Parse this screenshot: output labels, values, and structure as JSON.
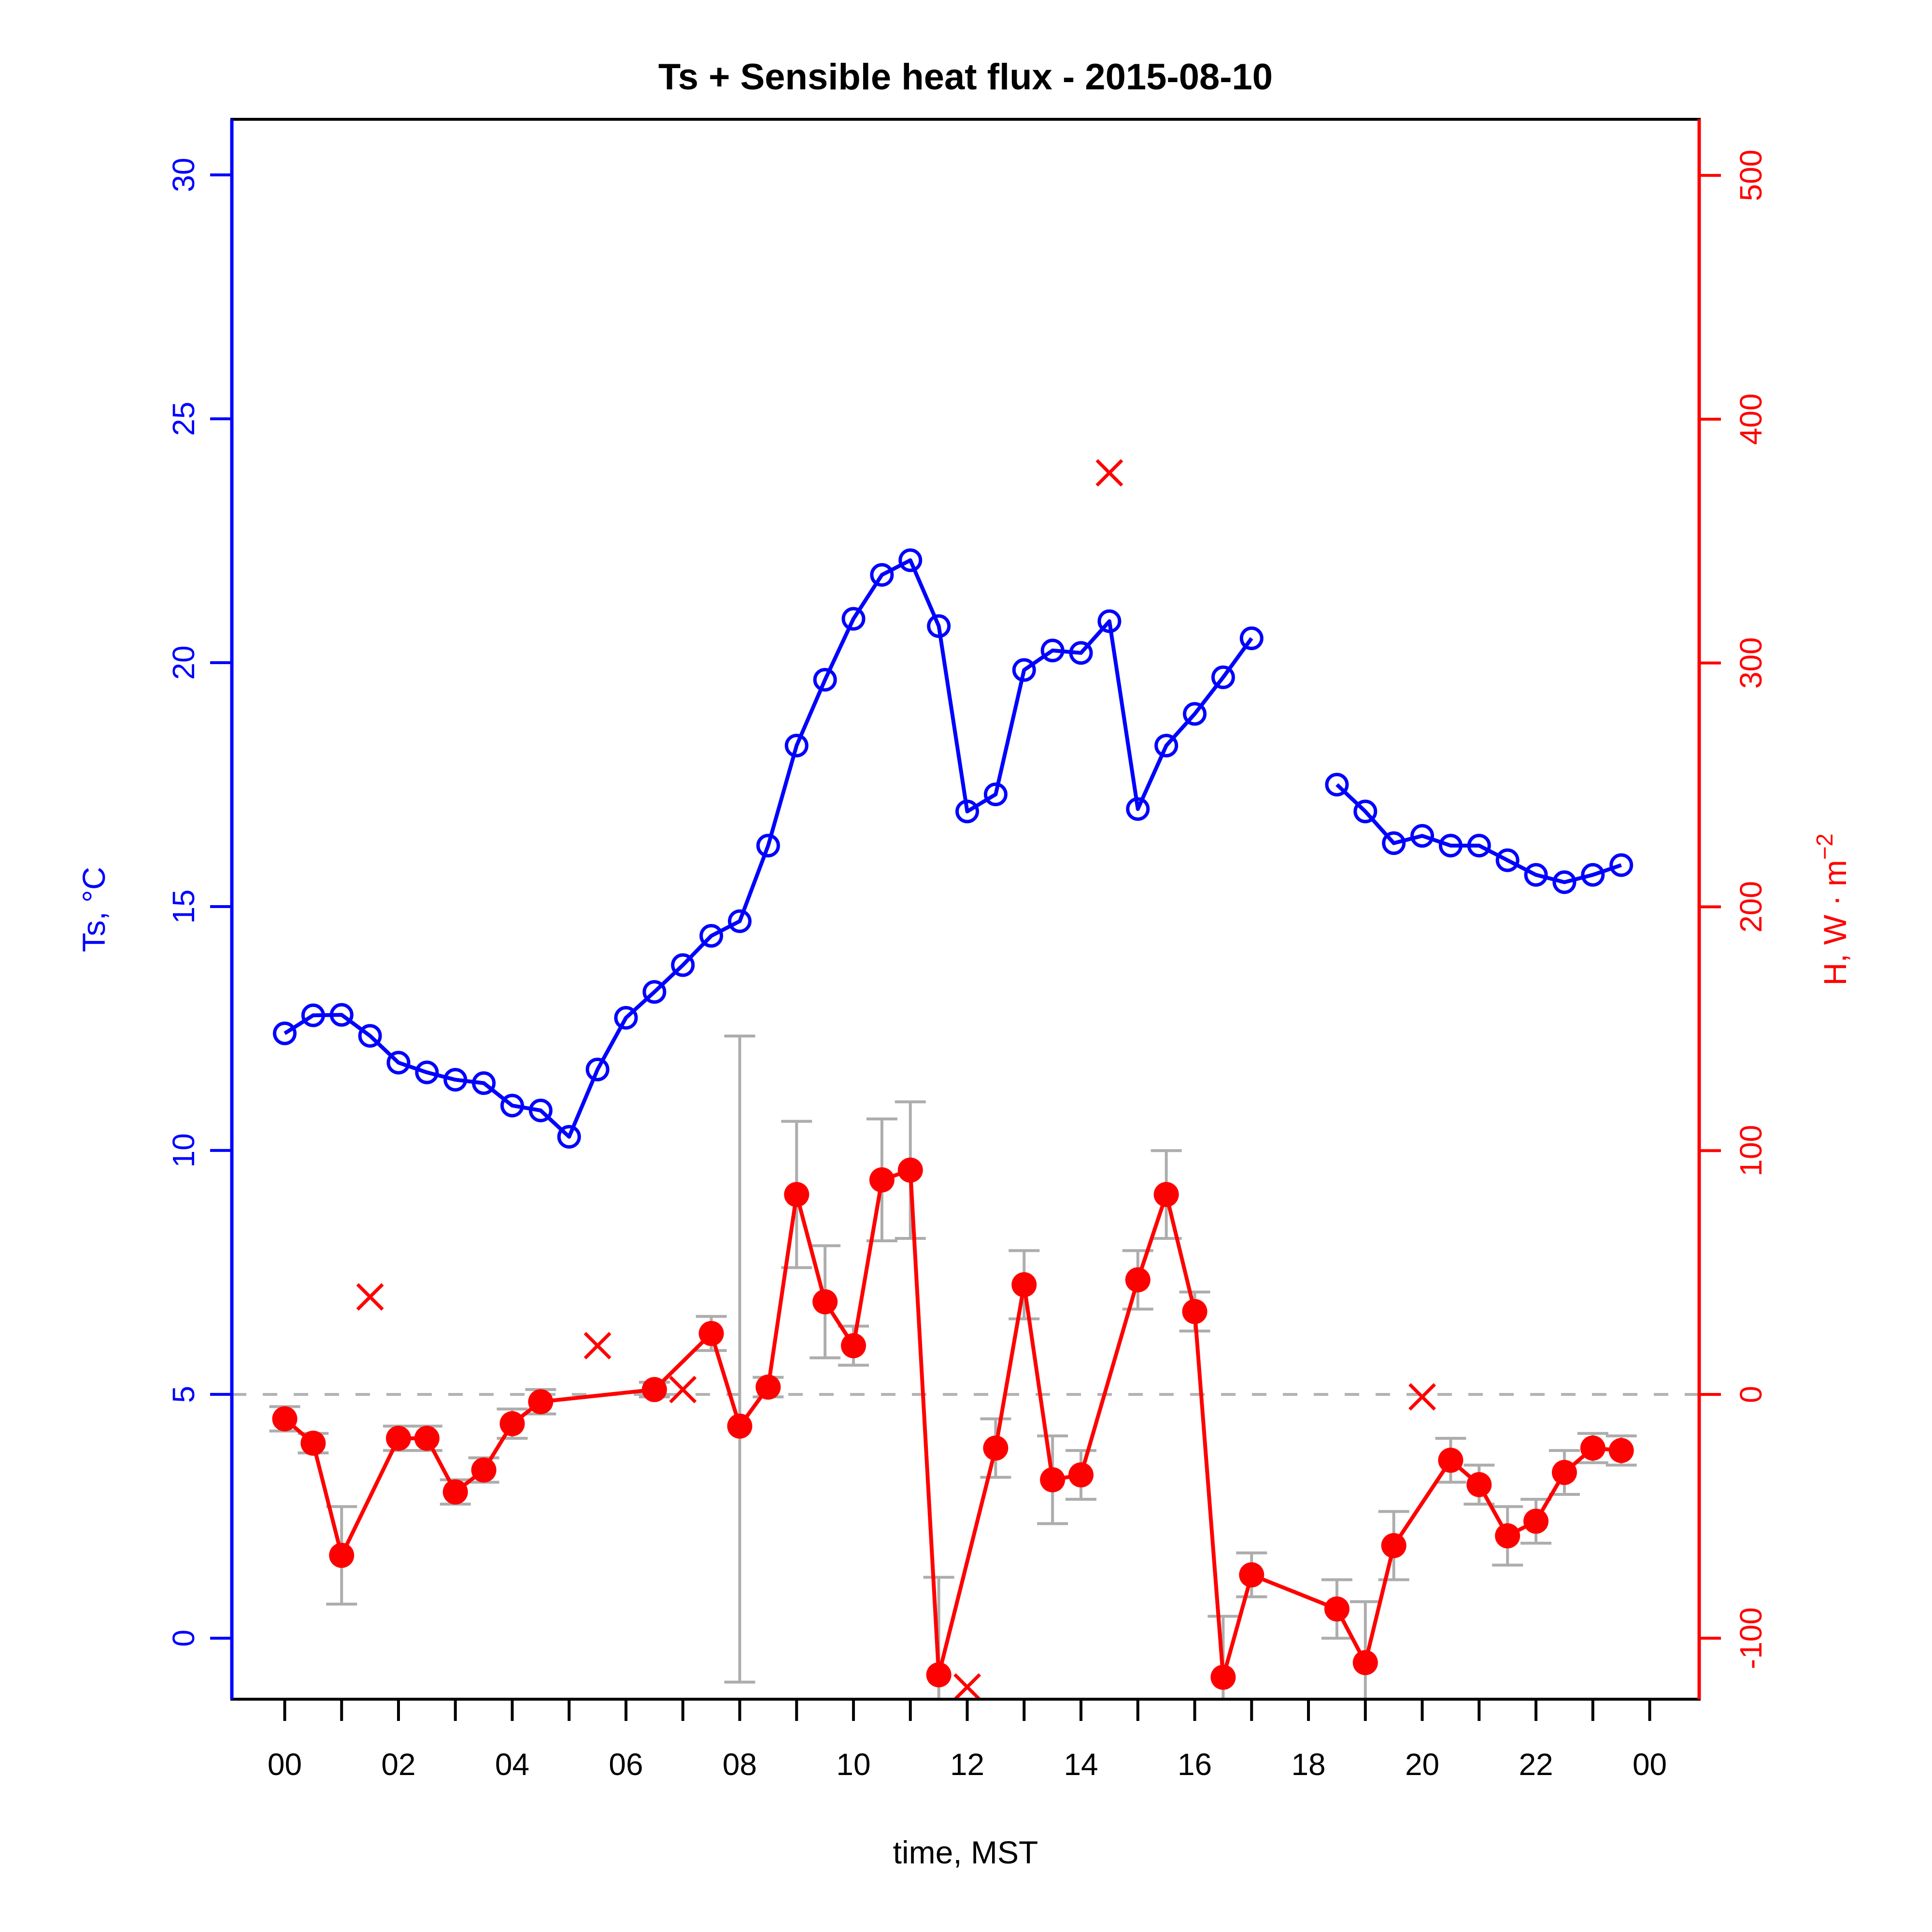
{
  "title": "Ts + Sensible heat flux -  2015-08-10",
  "axes": {
    "x": {
      "label": "time, MST",
      "tick_hours": [
        0,
        1,
        2,
        3,
        4,
        5,
        6,
        7,
        8,
        9,
        10,
        11,
        12,
        13,
        14,
        15,
        16,
        17,
        18,
        19,
        20,
        21,
        22,
        23,
        24
      ],
      "labeled_ticks": [
        {
          "hour": 0,
          "label": "00"
        },
        {
          "hour": 2,
          "label": "02"
        },
        {
          "hour": 4,
          "label": "04"
        },
        {
          "hour": 6,
          "label": "06"
        },
        {
          "hour": 8,
          "label": "08"
        },
        {
          "hour": 10,
          "label": "10"
        },
        {
          "hour": 12,
          "label": "12"
        },
        {
          "hour": 14,
          "label": "14"
        },
        {
          "hour": 16,
          "label": "16"
        },
        {
          "hour": 18,
          "label": "18"
        },
        {
          "hour": 20,
          "label": "20"
        },
        {
          "hour": 22,
          "label": "22"
        },
        {
          "hour": 24,
          "label": "00"
        }
      ],
      "range": [
        -0.93,
        24.87
      ]
    },
    "y_left": {
      "label": "Ts, °C",
      "color": "#0000ff",
      "ticks": [
        0,
        5,
        10,
        15,
        20,
        25,
        30
      ],
      "range": [
        -1.25,
        31.14
      ]
    },
    "y_right": {
      "label": "H, W · m⁻²",
      "label_base": "H, W · m",
      "label_exponent": "−2",
      "color": "#ff0000",
      "ticks": [
        -100,
        0,
        100,
        200,
        300,
        400,
        500
      ],
      "range": [
        -125,
        523
      ]
    }
  },
  "chart_data": {
    "type": "line",
    "grid": "off",
    "legend": "none",
    "reference_line": {
      "axis": "right",
      "value": 0,
      "style": "dashed",
      "color": "#b3b3b3"
    },
    "series": [
      {
        "name": "Ts",
        "axis": "left",
        "color": "#0000ff",
        "marker": "open-circle",
        "units": "°C",
        "points": [
          {
            "t": 0.0,
            "v": 12.4
          },
          {
            "t": 0.5,
            "v": 12.77
          },
          {
            "t": 1.0,
            "v": 12.78
          },
          {
            "t": 1.5,
            "v": 12.35
          },
          {
            "t": 2.0,
            "v": 11.8
          },
          {
            "t": 2.5,
            "v": 11.6
          },
          {
            "t": 3.0,
            "v": 11.45
          },
          {
            "t": 3.5,
            "v": 11.38
          },
          {
            "t": 4.0,
            "v": 10.92
          },
          {
            "t": 4.5,
            "v": 10.82
          },
          {
            "t": 5.0,
            "v": 10.28
          },
          {
            "t": 5.5,
            "v": 11.66
          },
          {
            "t": 6.0,
            "v": 12.72
          },
          {
            "t": 6.5,
            "v": 13.25
          },
          {
            "t": 7.0,
            "v": 13.8
          },
          {
            "t": 7.5,
            "v": 14.4
          },
          {
            "t": 8.0,
            "v": 14.7
          },
          {
            "t": 8.5,
            "v": 16.25
          },
          {
            "t": 9.0,
            "v": 18.3
          },
          {
            "t": 9.5,
            "v": 19.65
          },
          {
            "t": 10.0,
            "v": 20.9
          },
          {
            "t": 10.5,
            "v": 21.8
          },
          {
            "t": 11.0,
            "v": 22.1
          },
          {
            "t": 11.5,
            "v": 20.75
          },
          {
            "t": 12.0,
            "v": 16.95
          },
          {
            "t": 12.5,
            "v": 17.3
          },
          {
            "t": 13.0,
            "v": 19.85
          },
          {
            "t": 13.5,
            "v": 20.25
          },
          {
            "t": 14.0,
            "v": 20.2
          },
          {
            "t": 14.5,
            "v": 20.85
          },
          {
            "t": 15.0,
            "v": 17.0
          },
          {
            "t": 15.5,
            "v": 18.3
          },
          {
            "t": 16.0,
            "v": 18.95
          },
          {
            "t": 16.5,
            "v": 19.7
          },
          {
            "t": 17.0,
            "v": 20.5
          },
          {
            "t": 18.5,
            "v": 17.5,
            "gap_before": true
          },
          {
            "t": 19.0,
            "v": 16.95
          },
          {
            "t": 19.5,
            "v": 16.3
          },
          {
            "t": 20.0,
            "v": 16.45
          },
          {
            "t": 20.5,
            "v": 16.25
          },
          {
            "t": 21.0,
            "v": 16.25
          },
          {
            "t": 21.5,
            "v": 15.95
          },
          {
            "t": 22.0,
            "v": 15.65
          },
          {
            "t": 22.5,
            "v": 15.5
          },
          {
            "t": 23.0,
            "v": 15.65
          },
          {
            "t": 23.5,
            "v": 15.85
          }
        ]
      },
      {
        "name": "H",
        "axis": "right",
        "color": "#ff0000",
        "marker": "filled-circle",
        "error_bar_color": "#adadad",
        "units": "W · m⁻²",
        "points": [
          {
            "t": 0.0,
            "v": -10,
            "e": 5
          },
          {
            "t": 0.5,
            "v": -20,
            "e": 4
          },
          {
            "t": 1.0,
            "v": -66,
            "e": 20
          },
          {
            "t": 2.0,
            "v": -18,
            "e": 5
          },
          {
            "t": 2.5,
            "v": -18,
            "e": 5
          },
          {
            "t": 3.0,
            "v": -40,
            "e": 5
          },
          {
            "t": 3.5,
            "v": -31,
            "e": 5
          },
          {
            "t": 4.0,
            "v": -12,
            "e": 6
          },
          {
            "t": 4.5,
            "v": -3,
            "e": 5
          },
          {
            "t": 6.5,
            "v": 2,
            "e": 3
          },
          {
            "t": 7.5,
            "v": 25,
            "e": 7
          },
          {
            "t": 8.0,
            "v": -13,
            "e_hi": 160,
            "e_lo": 105
          },
          {
            "t": 8.5,
            "v": 3,
            "e": 4
          },
          {
            "t": 9.0,
            "v": 82,
            "e": 30
          },
          {
            "t": 9.5,
            "v": 38,
            "e": 23
          },
          {
            "t": 10.0,
            "v": 20,
            "e": 8
          },
          {
            "t": 10.5,
            "v": 88,
            "e": 25
          },
          {
            "t": 11.0,
            "v": 92,
            "e": 28
          },
          {
            "t": 11.5,
            "v": -115,
            "e_hi": 40,
            "e_lo": 20
          },
          {
            "t": 12.5,
            "v": -22,
            "e": 12
          },
          {
            "t": 13.0,
            "v": 45,
            "e": 14
          },
          {
            "t": 13.5,
            "v": -35,
            "e": 18
          },
          {
            "t": 14.0,
            "v": -33,
            "e": 10
          },
          {
            "t": 15.0,
            "v": 47,
            "e": 12
          },
          {
            "t": 15.5,
            "v": 82,
            "e": 18
          },
          {
            "t": 16.0,
            "v": 34,
            "e": 8
          },
          {
            "t": 16.5,
            "v": -116,
            "e_hi": 25,
            "e_lo": 20
          },
          {
            "t": 17.0,
            "v": -74,
            "e": 9
          },
          {
            "t": 18.5,
            "v": -88,
            "e": 12
          },
          {
            "t": 19.0,
            "v": -110,
            "e": 25
          },
          {
            "t": 19.5,
            "v": -62,
            "e": 14
          },
          {
            "t": 20.5,
            "v": -27,
            "e": 9
          },
          {
            "t": 21.0,
            "v": -37,
            "e": 8
          },
          {
            "t": 21.5,
            "v": -58,
            "e": 12
          },
          {
            "t": 22.0,
            "v": -52,
            "e": 9
          },
          {
            "t": 22.5,
            "v": -32,
            "e": 9
          },
          {
            "t": 23.0,
            "v": -22,
            "e": 6
          },
          {
            "t": 23.5,
            "v": -23,
            "e": 6
          }
        ],
        "rejected_points": [
          {
            "t": 1.5,
            "v": 40
          },
          {
            "t": 5.5,
            "v": 20
          },
          {
            "t": 7.0,
            "v": 2
          },
          {
            "t": 12.0,
            "v": -120
          },
          {
            "t": 14.5,
            "v": 378
          },
          {
            "t": 20.0,
            "v": -1
          }
        ],
        "rejected_marker": "x-cross"
      }
    ]
  }
}
